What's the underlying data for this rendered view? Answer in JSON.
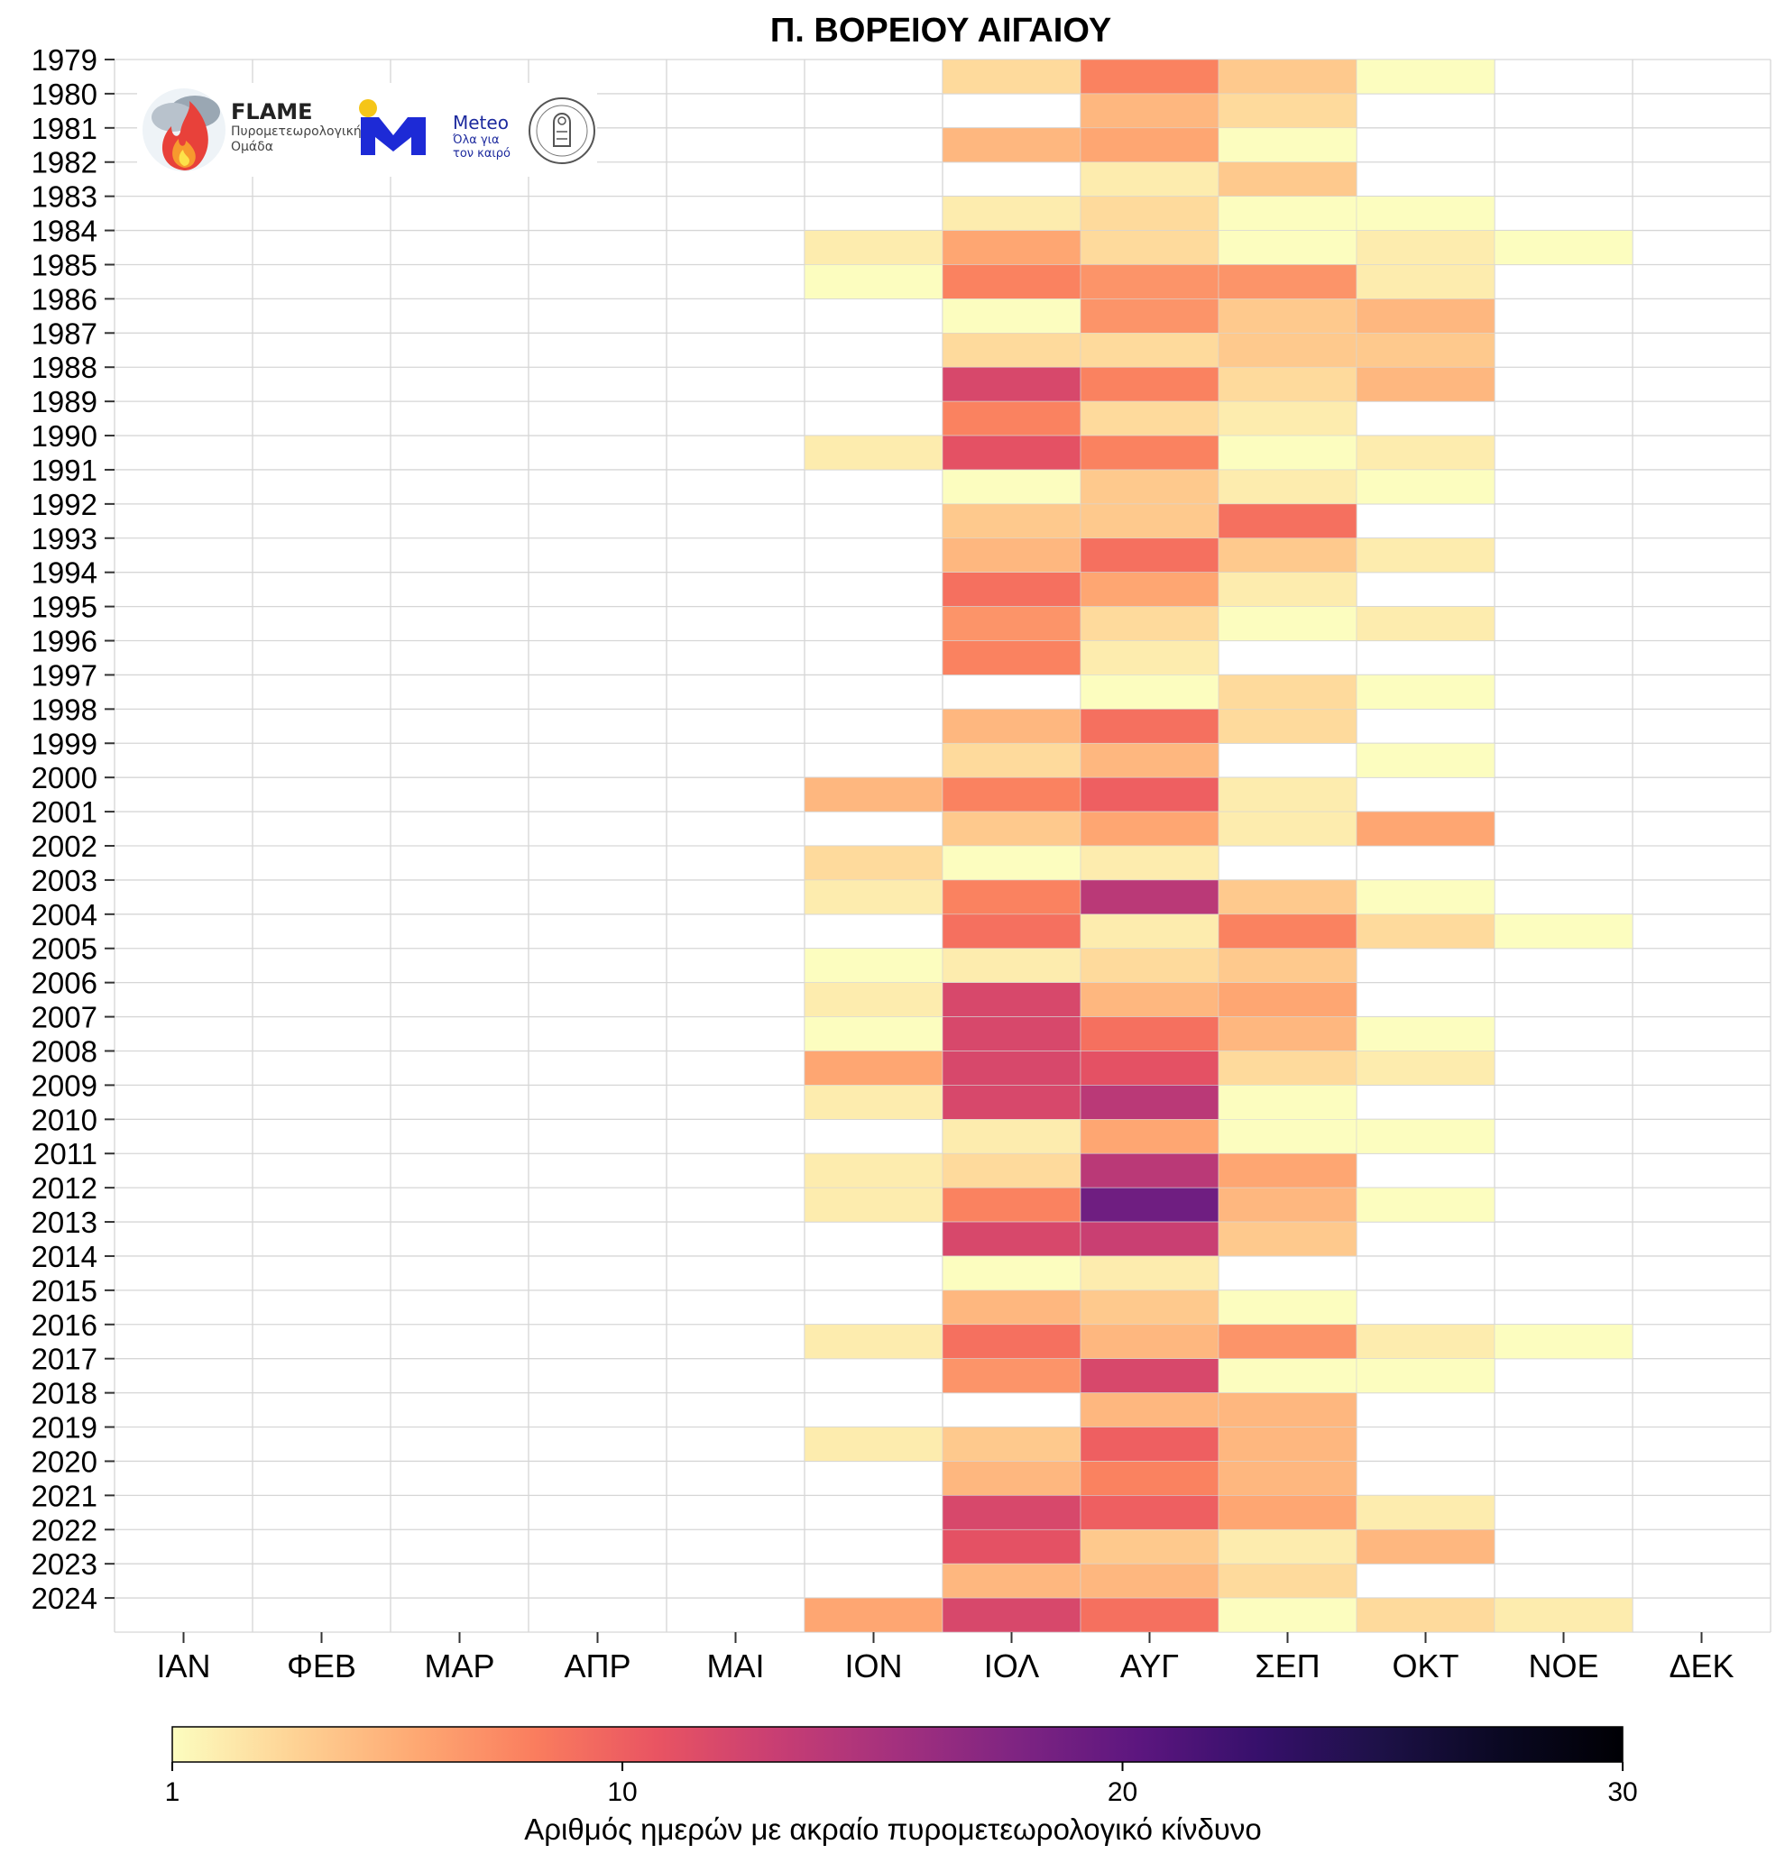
{
  "chart_data": {
    "type": "heatmap",
    "title": "Π. ΒΟΡΕΙΟΥ ΑΙΓΑΙΟΥ",
    "months": [
      "ΙΑΝ",
      "ΦΕΒ",
      "ΜΑΡ",
      "ΑΠΡ",
      "ΜΑΙ",
      "ΙΟΝ",
      "ΙΟΛ",
      "ΑΥΓ",
      "ΣΕΠ",
      "ΟΚΤ",
      "ΝΟΕ",
      "ΔΕΚ"
    ],
    "years": [
      "1979",
      "1980",
      "1981",
      "1982",
      "1983",
      "1984",
      "1985",
      "1986",
      "1987",
      "1988",
      "1989",
      "1990",
      "1991",
      "1992",
      "1993",
      "1994",
      "1995",
      "1996",
      "1997",
      "1998",
      "1999",
      "2000",
      "2001",
      "2002",
      "2003",
      "2004",
      "2005",
      "2006",
      "2007",
      "2008",
      "2009",
      "2010",
      "2011",
      "2012",
      "2013",
      "2014",
      "2015",
      "2016",
      "2017",
      "2018",
      "2019",
      "2020",
      "2021",
      "2022",
      "2023",
      "2024"
    ],
    "values": [
      [
        0,
        0,
        0,
        0,
        0,
        0,
        3,
        8,
        4,
        1,
        0,
        0
      ],
      [
        0,
        0,
        0,
        0,
        0,
        0,
        0,
        5,
        3,
        0,
        0,
        0
      ],
      [
        0,
        0,
        0,
        0,
        0,
        0,
        5,
        6,
        1,
        0,
        0,
        0
      ],
      [
        0,
        0,
        0,
        0,
        0,
        0,
        0,
        2,
        4,
        0,
        0,
        0
      ],
      [
        0,
        0,
        0,
        0,
        0,
        0,
        2,
        3,
        1,
        1,
        0,
        0
      ],
      [
        0,
        0,
        0,
        0,
        0,
        2,
        6,
        3,
        1,
        2,
        1,
        0
      ],
      [
        0,
        0,
        0,
        0,
        0,
        1,
        8,
        7,
        7,
        2,
        0,
        0
      ],
      [
        0,
        0,
        0,
        0,
        0,
        0,
        1,
        7,
        4,
        5,
        0,
        0
      ],
      [
        0,
        0,
        0,
        0,
        0,
        0,
        3,
        3,
        4,
        4,
        0,
        0
      ],
      [
        0,
        0,
        0,
        0,
        0,
        0,
        12,
        8,
        3,
        5,
        0,
        0
      ],
      [
        0,
        0,
        0,
        0,
        0,
        0,
        8,
        3,
        2,
        0,
        0,
        0
      ],
      [
        0,
        0,
        0,
        0,
        0,
        2,
        11,
        8,
        1,
        2,
        0,
        0
      ],
      [
        0,
        0,
        0,
        0,
        0,
        0,
        1,
        4,
        2,
        1,
        0,
        0
      ],
      [
        0,
        0,
        0,
        0,
        0,
        0,
        4,
        4,
        9,
        0,
        0,
        0
      ],
      [
        0,
        0,
        0,
        0,
        0,
        0,
        5,
        9,
        4,
        2,
        0,
        0
      ],
      [
        0,
        0,
        0,
        0,
        0,
        0,
        9,
        6,
        2,
        0,
        0,
        0
      ],
      [
        0,
        0,
        0,
        0,
        0,
        0,
        7,
        3,
        1,
        2,
        0,
        0
      ],
      [
        0,
        0,
        0,
        0,
        0,
        0,
        8,
        2,
        0,
        0,
        0,
        0
      ],
      [
        0,
        0,
        0,
        0,
        0,
        0,
        0,
        1,
        3,
        1,
        0,
        0
      ],
      [
        0,
        0,
        0,
        0,
        0,
        0,
        5,
        9,
        3,
        0,
        0,
        0
      ],
      [
        0,
        0,
        0,
        0,
        0,
        0,
        3,
        5,
        0,
        1,
        0,
        0
      ],
      [
        0,
        0,
        0,
        0,
        0,
        5,
        8,
        10,
        2,
        0,
        0,
        0
      ],
      [
        0,
        0,
        0,
        0,
        0,
        0,
        4,
        6,
        2,
        6,
        0,
        0
      ],
      [
        0,
        0,
        0,
        0,
        0,
        3,
        1,
        2,
        0,
        0,
        0,
        0
      ],
      [
        0,
        0,
        0,
        0,
        0,
        2,
        8,
        14,
        4,
        1,
        0,
        0
      ],
      [
        0,
        0,
        0,
        0,
        0,
        0,
        9,
        2,
        8,
        3,
        1,
        0
      ],
      [
        0,
        0,
        0,
        0,
        0,
        1,
        2,
        3,
        4,
        0,
        0,
        0
      ],
      [
        0,
        0,
        0,
        0,
        0,
        2,
        12,
        5,
        6,
        0,
        0,
        0
      ],
      [
        0,
        0,
        0,
        0,
        0,
        1,
        12,
        9,
        5,
        1,
        0,
        0
      ],
      [
        0,
        0,
        0,
        0,
        0,
        6,
        12,
        11,
        3,
        2,
        0,
        0
      ],
      [
        0,
        0,
        0,
        0,
        0,
        2,
        12,
        14,
        1,
        0,
        0,
        0
      ],
      [
        0,
        0,
        0,
        0,
        0,
        0,
        2,
        6,
        1,
        1,
        0,
        0
      ],
      [
        0,
        0,
        0,
        0,
        0,
        2,
        3,
        14,
        6,
        0,
        0,
        0
      ],
      [
        0,
        0,
        0,
        0,
        0,
        2,
        8,
        19,
        5,
        1,
        0,
        0
      ],
      [
        0,
        0,
        0,
        0,
        0,
        0,
        12,
        13,
        4,
        0,
        0,
        0
      ],
      [
        0,
        0,
        0,
        0,
        0,
        0,
        1,
        2,
        0,
        0,
        0,
        0
      ],
      [
        0,
        0,
        0,
        0,
        0,
        0,
        5,
        4,
        1,
        0,
        0,
        0
      ],
      [
        0,
        0,
        0,
        0,
        0,
        2,
        9,
        5,
        7,
        2,
        1,
        0
      ],
      [
        0,
        0,
        0,
        0,
        0,
        0,
        7,
        12,
        1,
        1,
        0,
        0
      ],
      [
        0,
        0,
        0,
        0,
        0,
        0,
        0,
        5,
        5,
        0,
        0,
        0
      ],
      [
        0,
        0,
        0,
        0,
        0,
        2,
        4,
        10,
        5,
        0,
        0,
        0
      ],
      [
        0,
        0,
        0,
        0,
        0,
        0,
        5,
        8,
        5,
        0,
        0,
        0
      ],
      [
        0,
        0,
        0,
        0,
        0,
        0,
        12,
        10,
        6,
        2,
        0,
        0
      ],
      [
        0,
        0,
        0,
        0,
        0,
        0,
        11,
        4,
        2,
        5,
        0,
        0
      ],
      [
        0,
        0,
        0,
        0,
        0,
        0,
        5,
        5,
        3,
        0,
        0,
        0
      ],
      [
        0,
        0,
        0,
        0,
        0,
        6,
        12,
        9,
        1,
        3,
        2,
        0
      ]
    ],
    "colorbar": {
      "min": 1,
      "max": 30,
      "ticks": [
        1,
        10,
        20,
        30
      ],
      "label": "Αριθμός ημερών με ακραίο πυρομετεωρολογικό κίνδυνο"
    },
    "colorscale": [
      "#fcfdbf",
      "#fed395",
      "#fea973",
      "#fa7d5e",
      "#e95462",
      "#c83e73",
      "#a3307e",
      "#7e2482",
      "#5c167f",
      "#36106b",
      "#1d1147",
      "#0a0822",
      "#000004"
    ]
  },
  "logos": {
    "flame_name": "FLAME",
    "flame_subtitle": "Πυρομετεωρολογική Ομάδα",
    "meteo_name": "Meteo",
    "meteo_subtitle": "Όλα για τον καιρό"
  }
}
